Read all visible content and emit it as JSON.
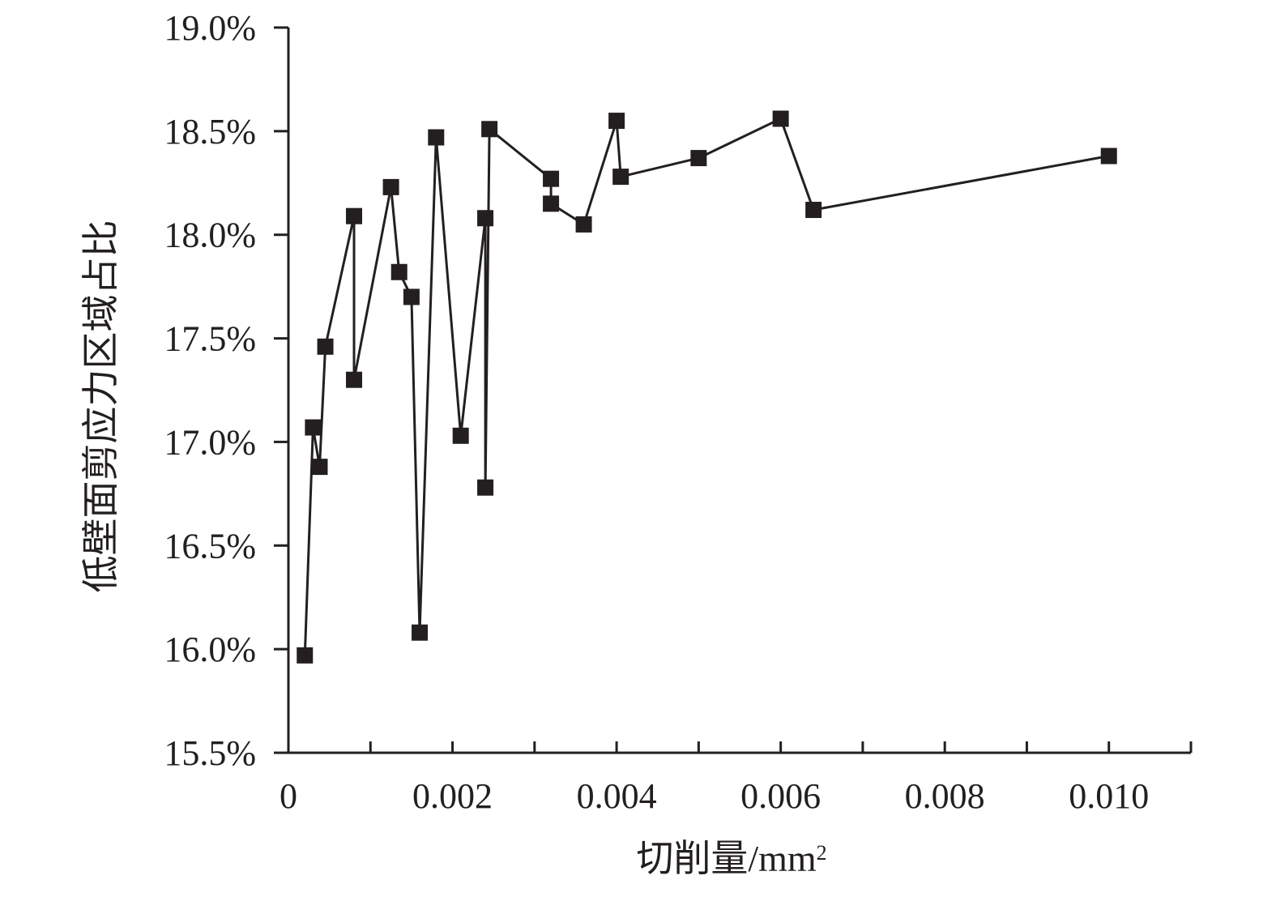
{
  "chart_data": {
    "type": "line",
    "xlabel": "切削量/mm",
    "xlabel_superscript": "2",
    "ylabel": "低壁面剪应力区域占比",
    "xlim": [
      0,
      0.011
    ],
    "ylim": [
      15.5,
      19.0
    ],
    "x_ticks": [
      0,
      0.002,
      0.004,
      0.006,
      0.008,
      0.01
    ],
    "x_tick_labels": [
      "0",
      "0.002",
      "0.004",
      "0.006",
      "0.008",
      "0.010"
    ],
    "y_ticks": [
      15.5,
      16.0,
      16.5,
      17.0,
      17.5,
      18.0,
      18.5,
      19.0
    ],
    "y_tick_labels": [
      "15.5%",
      "16.0%",
      "16.5%",
      "17.0%",
      "17.5%",
      "18.0%",
      "18.5%",
      "19.0%"
    ],
    "marker": "square",
    "grid": false,
    "series": [
      {
        "color": "#231f20",
        "points": [
          {
            "x": 0.0002,
            "y": 15.97
          },
          {
            "x": 0.0003,
            "y": 17.07
          },
          {
            "x": 0.00038,
            "y": 16.88
          },
          {
            "x": 0.00045,
            "y": 17.46
          },
          {
            "x": 0.0008,
            "y": 18.09
          },
          {
            "x": 0.0008,
            "y": 17.3
          },
          {
            "x": 0.00125,
            "y": 18.23
          },
          {
            "x": 0.00135,
            "y": 17.82
          },
          {
            "x": 0.0015,
            "y": 17.7
          },
          {
            "x": 0.0016,
            "y": 16.08
          },
          {
            "x": 0.0018,
            "y": 18.47
          },
          {
            "x": 0.0021,
            "y": 17.03
          },
          {
            "x": 0.0024,
            "y": 18.08
          },
          {
            "x": 0.0024,
            "y": 16.78
          },
          {
            "x": 0.00245,
            "y": 18.51
          },
          {
            "x": 0.0032,
            "y": 18.27
          },
          {
            "x": 0.0032,
            "y": 18.15
          },
          {
            "x": 0.0036,
            "y": 18.05
          },
          {
            "x": 0.004,
            "y": 18.55
          },
          {
            "x": 0.00405,
            "y": 18.28
          },
          {
            "x": 0.005,
            "y": 18.37
          },
          {
            "x": 0.006,
            "y": 18.56
          },
          {
            "x": 0.0064,
            "y": 18.12
          },
          {
            "x": 0.01,
            "y": 18.38
          }
        ]
      }
    ]
  }
}
